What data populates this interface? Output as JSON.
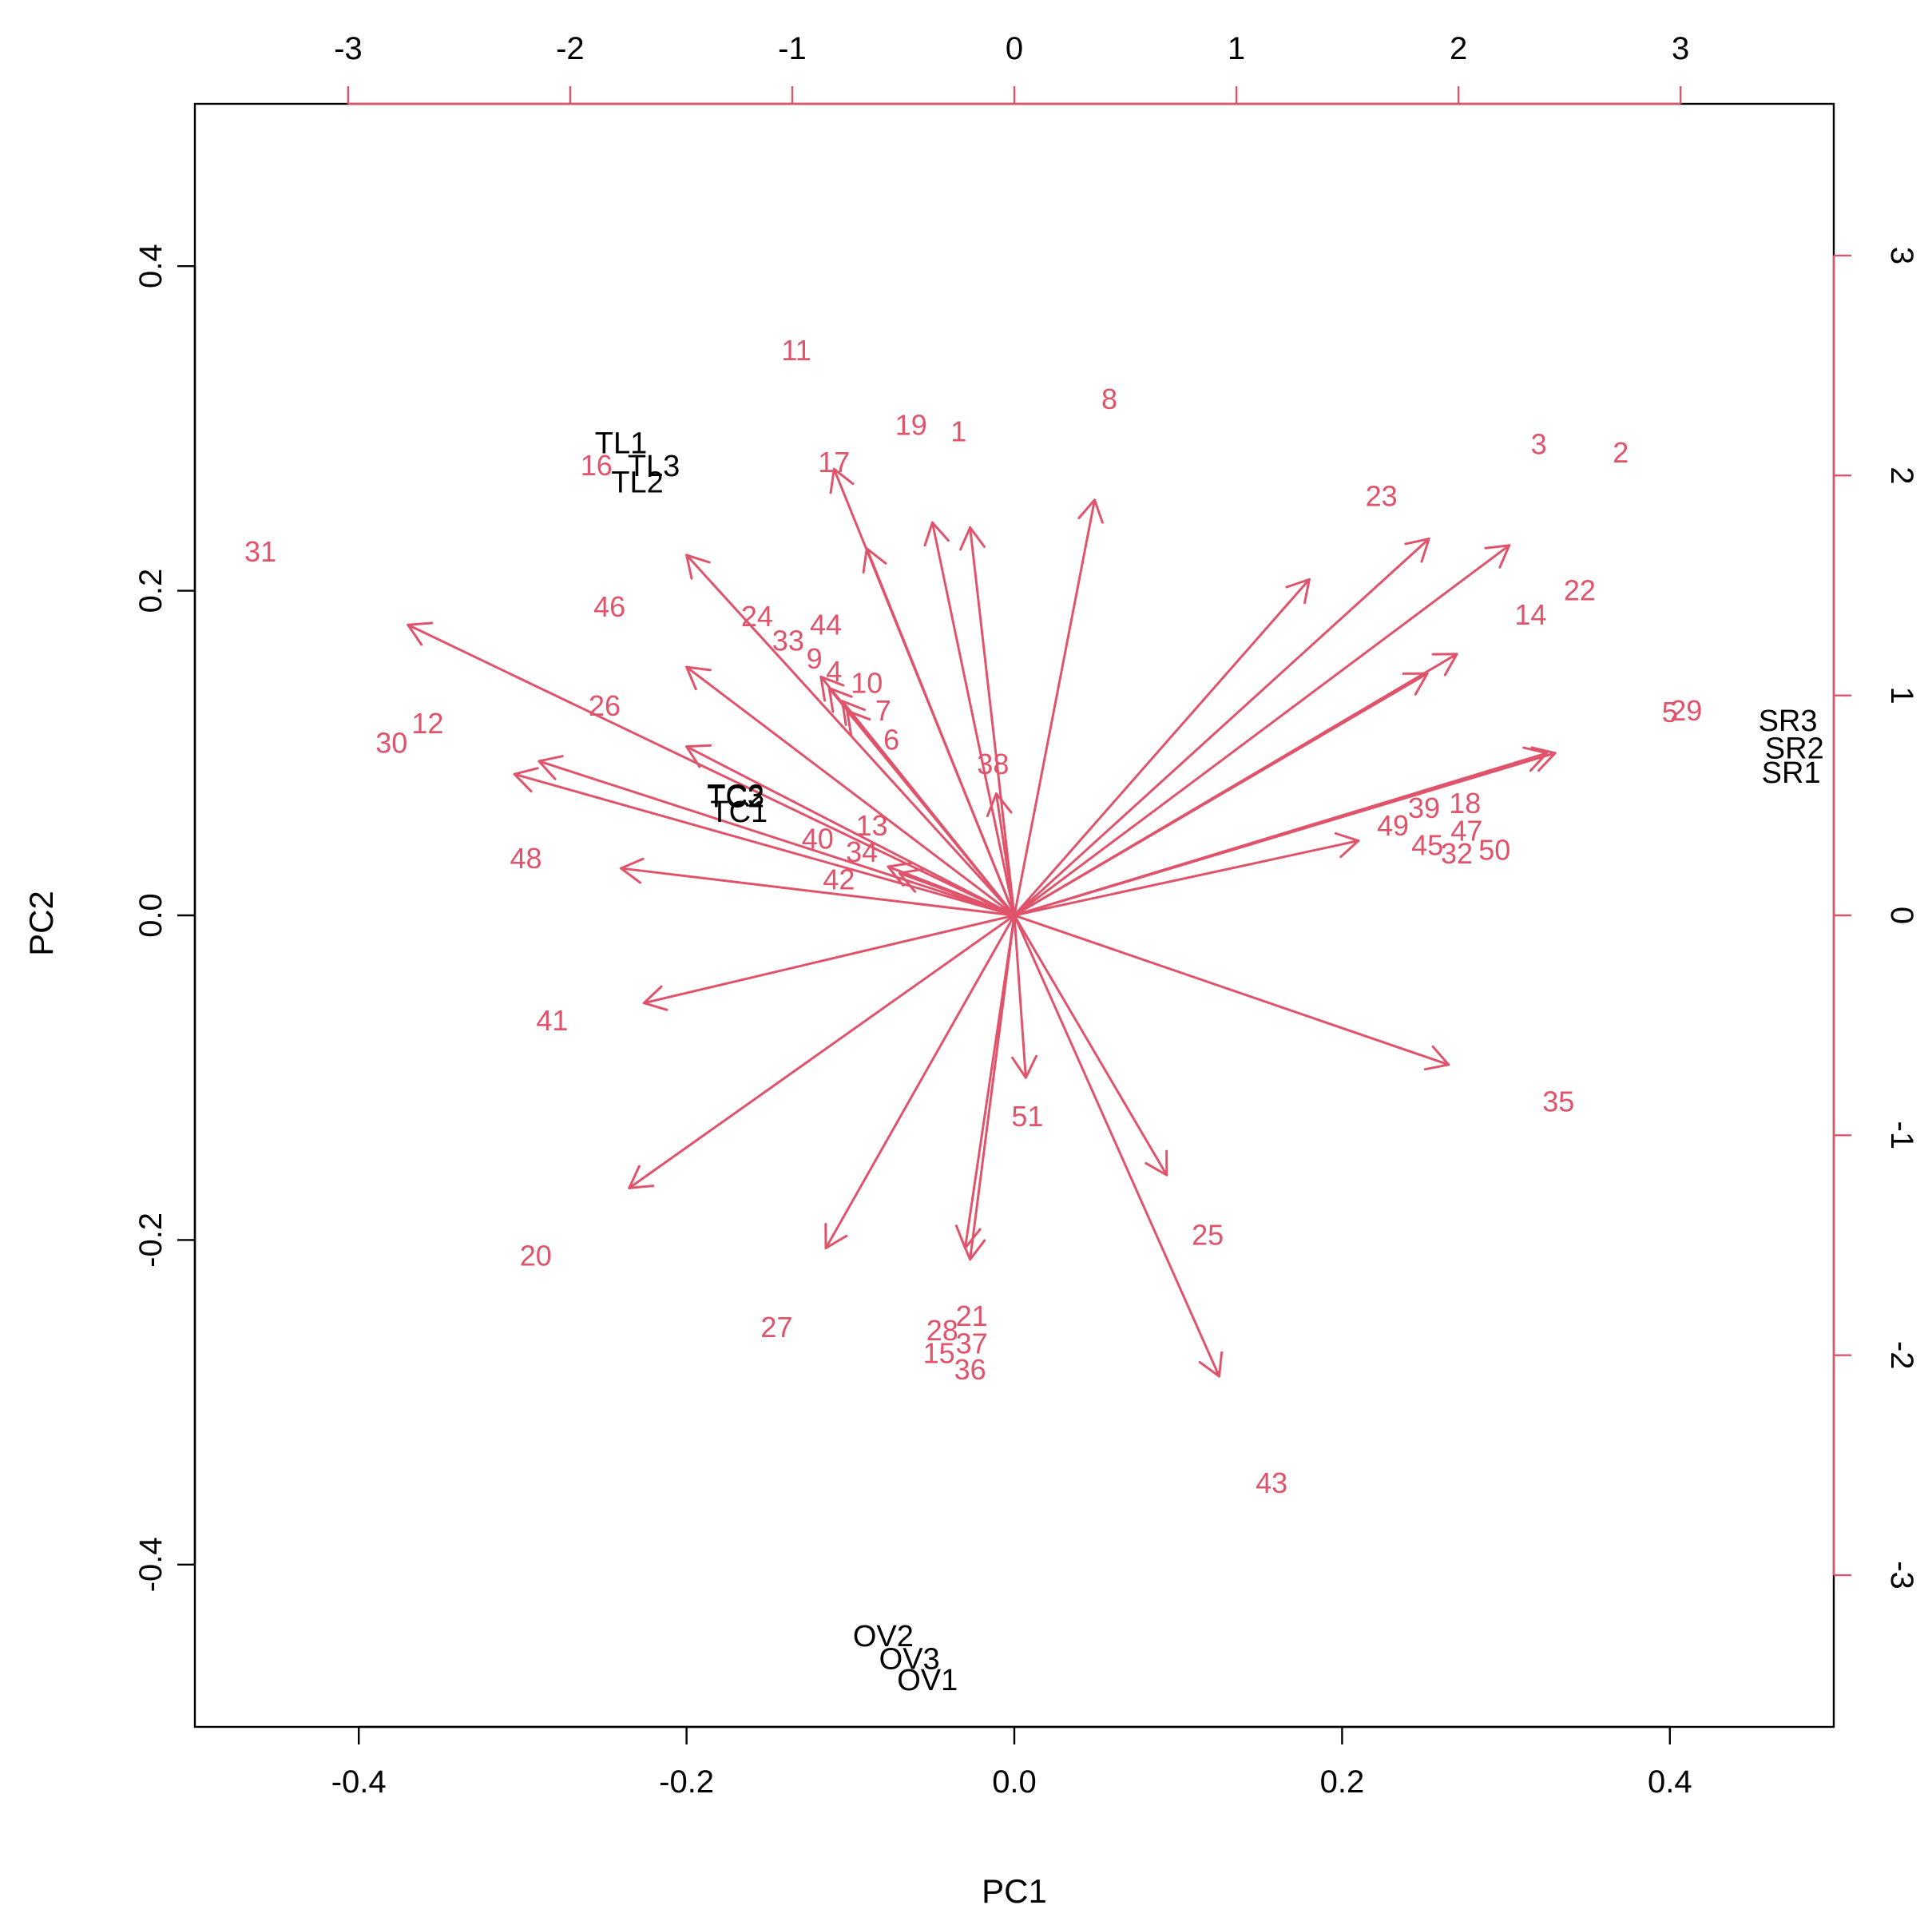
{
  "colors": {
    "observations": "#DF536B",
    "variables": "#000000",
    "background": "#ffffff"
  },
  "chart_data": {
    "type": "scatter",
    "subtype": "pca-biplot",
    "title": "",
    "xlabel": "PC1",
    "ylabel": "PC2",
    "xlim": [
      -0.5,
      0.5
    ],
    "ylim": [
      -0.5,
      0.5
    ],
    "x_ticks": [
      -0.4,
      -0.2,
      0.0,
      0.2,
      0.4
    ],
    "x_tick_labels": [
      "-0.4",
      "-0.2",
      "0.0",
      "0.2",
      "0.4"
    ],
    "y_ticks": [
      -0.4,
      -0.2,
      0.0,
      0.2,
      0.4
    ],
    "y_tick_labels": [
      "-0.4",
      "-0.2",
      "0.0",
      "0.2",
      "0.4"
    ],
    "top_axis": {
      "lim": [
        -3.69,
        3.69
      ],
      "ticks": [
        -3,
        -2,
        -1,
        0,
        1,
        2,
        3
      ],
      "tick_labels": [
        "-3",
        "-2",
        "-1",
        "0",
        "1",
        "2",
        "3"
      ]
    },
    "right_axis": {
      "lim": [
        -3.69,
        3.69
      ],
      "ticks": [
        -3,
        -2,
        -1,
        0,
        1,
        2,
        3
      ],
      "tick_labels": [
        "-3",
        "-2",
        "-1",
        "0",
        "1",
        "2",
        "3"
      ]
    },
    "grid": false,
    "observations": [
      {
        "label": "1",
        "x": -0.034,
        "y": 0.298
      },
      {
        "label": "2",
        "x": 0.37,
        "y": 0.285
      },
      {
        "label": "3",
        "x": 0.32,
        "y": 0.29
      },
      {
        "label": "4",
        "x": -0.11,
        "y": 0.15
      },
      {
        "label": "5",
        "x": 0.4,
        "y": 0.125
      },
      {
        "label": "6",
        "x": -0.075,
        "y": 0.108
      },
      {
        "label": "7",
        "x": -0.08,
        "y": 0.126
      },
      {
        "label": "8",
        "x": 0.058,
        "y": 0.318
      },
      {
        "label": "9",
        "x": -0.122,
        "y": 0.158
      },
      {
        "label": "10",
        "x": -0.09,
        "y": 0.143
      },
      {
        "label": "11",
        "x": -0.133,
        "y": 0.348
      },
      {
        "label": "12",
        "x": -0.358,
        "y": 0.118
      },
      {
        "label": "13",
        "x": -0.087,
        "y": 0.055
      },
      {
        "label": "14",
        "x": 0.315,
        "y": 0.185
      },
      {
        "label": "15",
        "x": -0.046,
        "y": -0.27
      },
      {
        "label": "16",
        "x": -0.255,
        "y": 0.277
      },
      {
        "label": "17",
        "x": -0.11,
        "y": 0.279
      },
      {
        "label": "18",
        "x": 0.275,
        "y": 0.069
      },
      {
        "label": "19",
        "x": -0.063,
        "y": 0.302
      },
      {
        "label": "20",
        "x": -0.292,
        "y": -0.21
      },
      {
        "label": "21",
        "x": -0.026,
        "y": -0.247
      },
      {
        "label": "22",
        "x": 0.345,
        "y": 0.2
      },
      {
        "label": "23",
        "x": 0.224,
        "y": 0.258
      },
      {
        "label": "24",
        "x": -0.157,
        "y": 0.184
      },
      {
        "label": "25",
        "x": 0.118,
        "y": -0.197
      },
      {
        "label": "26",
        "x": -0.25,
        "y": 0.129
      },
      {
        "label": "27",
        "x": -0.145,
        "y": -0.254
      },
      {
        "label": "28",
        "x": -0.044,
        "y": -0.256
      },
      {
        "label": "29",
        "x": 0.41,
        "y": 0.126
      },
      {
        "label": "30",
        "x": -0.38,
        "y": 0.106
      },
      {
        "label": "31",
        "x": -0.46,
        "y": 0.224
      },
      {
        "label": "32",
        "x": 0.27,
        "y": 0.038
      },
      {
        "label": "33",
        "x": -0.138,
        "y": 0.169
      },
      {
        "label": "34",
        "x": -0.093,
        "y": 0.039
      },
      {
        "label": "35",
        "x": 0.332,
        "y": -0.115
      },
      {
        "label": "36",
        "x": -0.027,
        "y": -0.28
      },
      {
        "label": "37",
        "x": -0.026,
        "y": -0.264
      },
      {
        "label": "38",
        "x": -0.013,
        "y": 0.093
      },
      {
        "label": "39",
        "x": 0.25,
        "y": 0.066
      },
      {
        "label": "40",
        "x": -0.12,
        "y": 0.047
      },
      {
        "label": "41",
        "x": -0.282,
        "y": -0.065
      },
      {
        "label": "42",
        "x": -0.107,
        "y": 0.022
      },
      {
        "label": "43",
        "x": 0.157,
        "y": -0.35
      },
      {
        "label": "44",
        "x": -0.115,
        "y": 0.179
      },
      {
        "label": "45",
        "x": 0.252,
        "y": 0.043
      },
      {
        "label": "46",
        "x": -0.247,
        "y": 0.19
      },
      {
        "label": "47",
        "x": 0.276,
        "y": 0.052
      },
      {
        "label": "48",
        "x": -0.298,
        "y": 0.035
      },
      {
        "label": "49",
        "x": 0.231,
        "y": 0.055
      },
      {
        "label": "50",
        "x": 0.293,
        "y": 0.04
      },
      {
        "label": "51",
        "x": 0.008,
        "y": -0.124
      }
    ],
    "variable_labels": [
      {
        "label": "TL1",
        "x": -0.24,
        "y": 0.291
      },
      {
        "label": "TL3",
        "x": -0.22,
        "y": 0.277
      },
      {
        "label": "TL2",
        "x": -0.23,
        "y": 0.267
      },
      {
        "label": "TC3",
        "x": -0.17,
        "y": 0.074
      },
      {
        "label": "TC2",
        "x": -0.17,
        "y": 0.073
      },
      {
        "label": "TC1",
        "x": -0.168,
        "y": 0.064
      },
      {
        "label": "SR3",
        "x": 0.472,
        "y": 0.12
      },
      {
        "label": "SR2",
        "x": 0.476,
        "y": 0.103
      },
      {
        "label": "SR1",
        "x": 0.474,
        "y": 0.088
      },
      {
        "label": "OV2",
        "x": -0.08,
        "y": -0.444
      },
      {
        "label": "OV3",
        "x": -0.064,
        "y": -0.458
      },
      {
        "label": "OV1",
        "x": -0.053,
        "y": -0.471
      }
    ],
    "loading_arrows": [
      {
        "x": -0.37,
        "y": 0.179
      },
      {
        "x": -0.2,
        "y": 0.222
      },
      {
        "x": -0.2,
        "y": 0.153
      },
      {
        "x": -0.2,
        "y": 0.104
      },
      {
        "x": -0.29,
        "y": 0.095
      },
      {
        "x": -0.305,
        "y": 0.087
      },
      {
        "x": -0.24,
        "y": 0.029
      },
      {
        "x": -0.226,
        "y": -0.054
      },
      {
        "x": -0.118,
        "y": 0.147
      },
      {
        "x": -0.113,
        "y": 0.14
      },
      {
        "x": -0.105,
        "y": 0.132
      },
      {
        "x": -0.102,
        "y": 0.126
      },
      {
        "x": -0.11,
        "y": 0.275
      },
      {
        "x": -0.09,
        "y": 0.226
      },
      {
        "x": -0.05,
        "y": 0.242
      },
      {
        "x": -0.027,
        "y": 0.239
      },
      {
        "x": -0.077,
        "y": 0.03
      },
      {
        "x": -0.07,
        "y": 0.026
      },
      {
        "x": -0.011,
        "y": 0.075
      },
      {
        "x": 0.049,
        "y": 0.256
      },
      {
        "x": 0.18,
        "y": 0.207
      },
      {
        "x": 0.253,
        "y": 0.232
      },
      {
        "x": 0.302,
        "y": 0.228
      },
      {
        "x": 0.252,
        "y": 0.149
      },
      {
        "x": 0.27,
        "y": 0.161
      },
      {
        "x": 0.325,
        "y": 0.1
      },
      {
        "x": 0.33,
        "y": 0.1
      },
      {
        "x": 0.21,
        "y": 0.046
      },
      {
        "x": 0.265,
        "y": -0.092
      },
      {
        "x": 0.007,
        "y": -0.1
      },
      {
        "x": 0.093,
        "y": -0.16
      },
      {
        "x": 0.125,
        "y": -0.284
      },
      {
        "x": -0.027,
        "y": -0.212
      },
      {
        "x": -0.03,
        "y": -0.205
      },
      {
        "x": -0.115,
        "y": -0.205
      },
      {
        "x": -0.235,
        "y": -0.168
      }
    ]
  }
}
